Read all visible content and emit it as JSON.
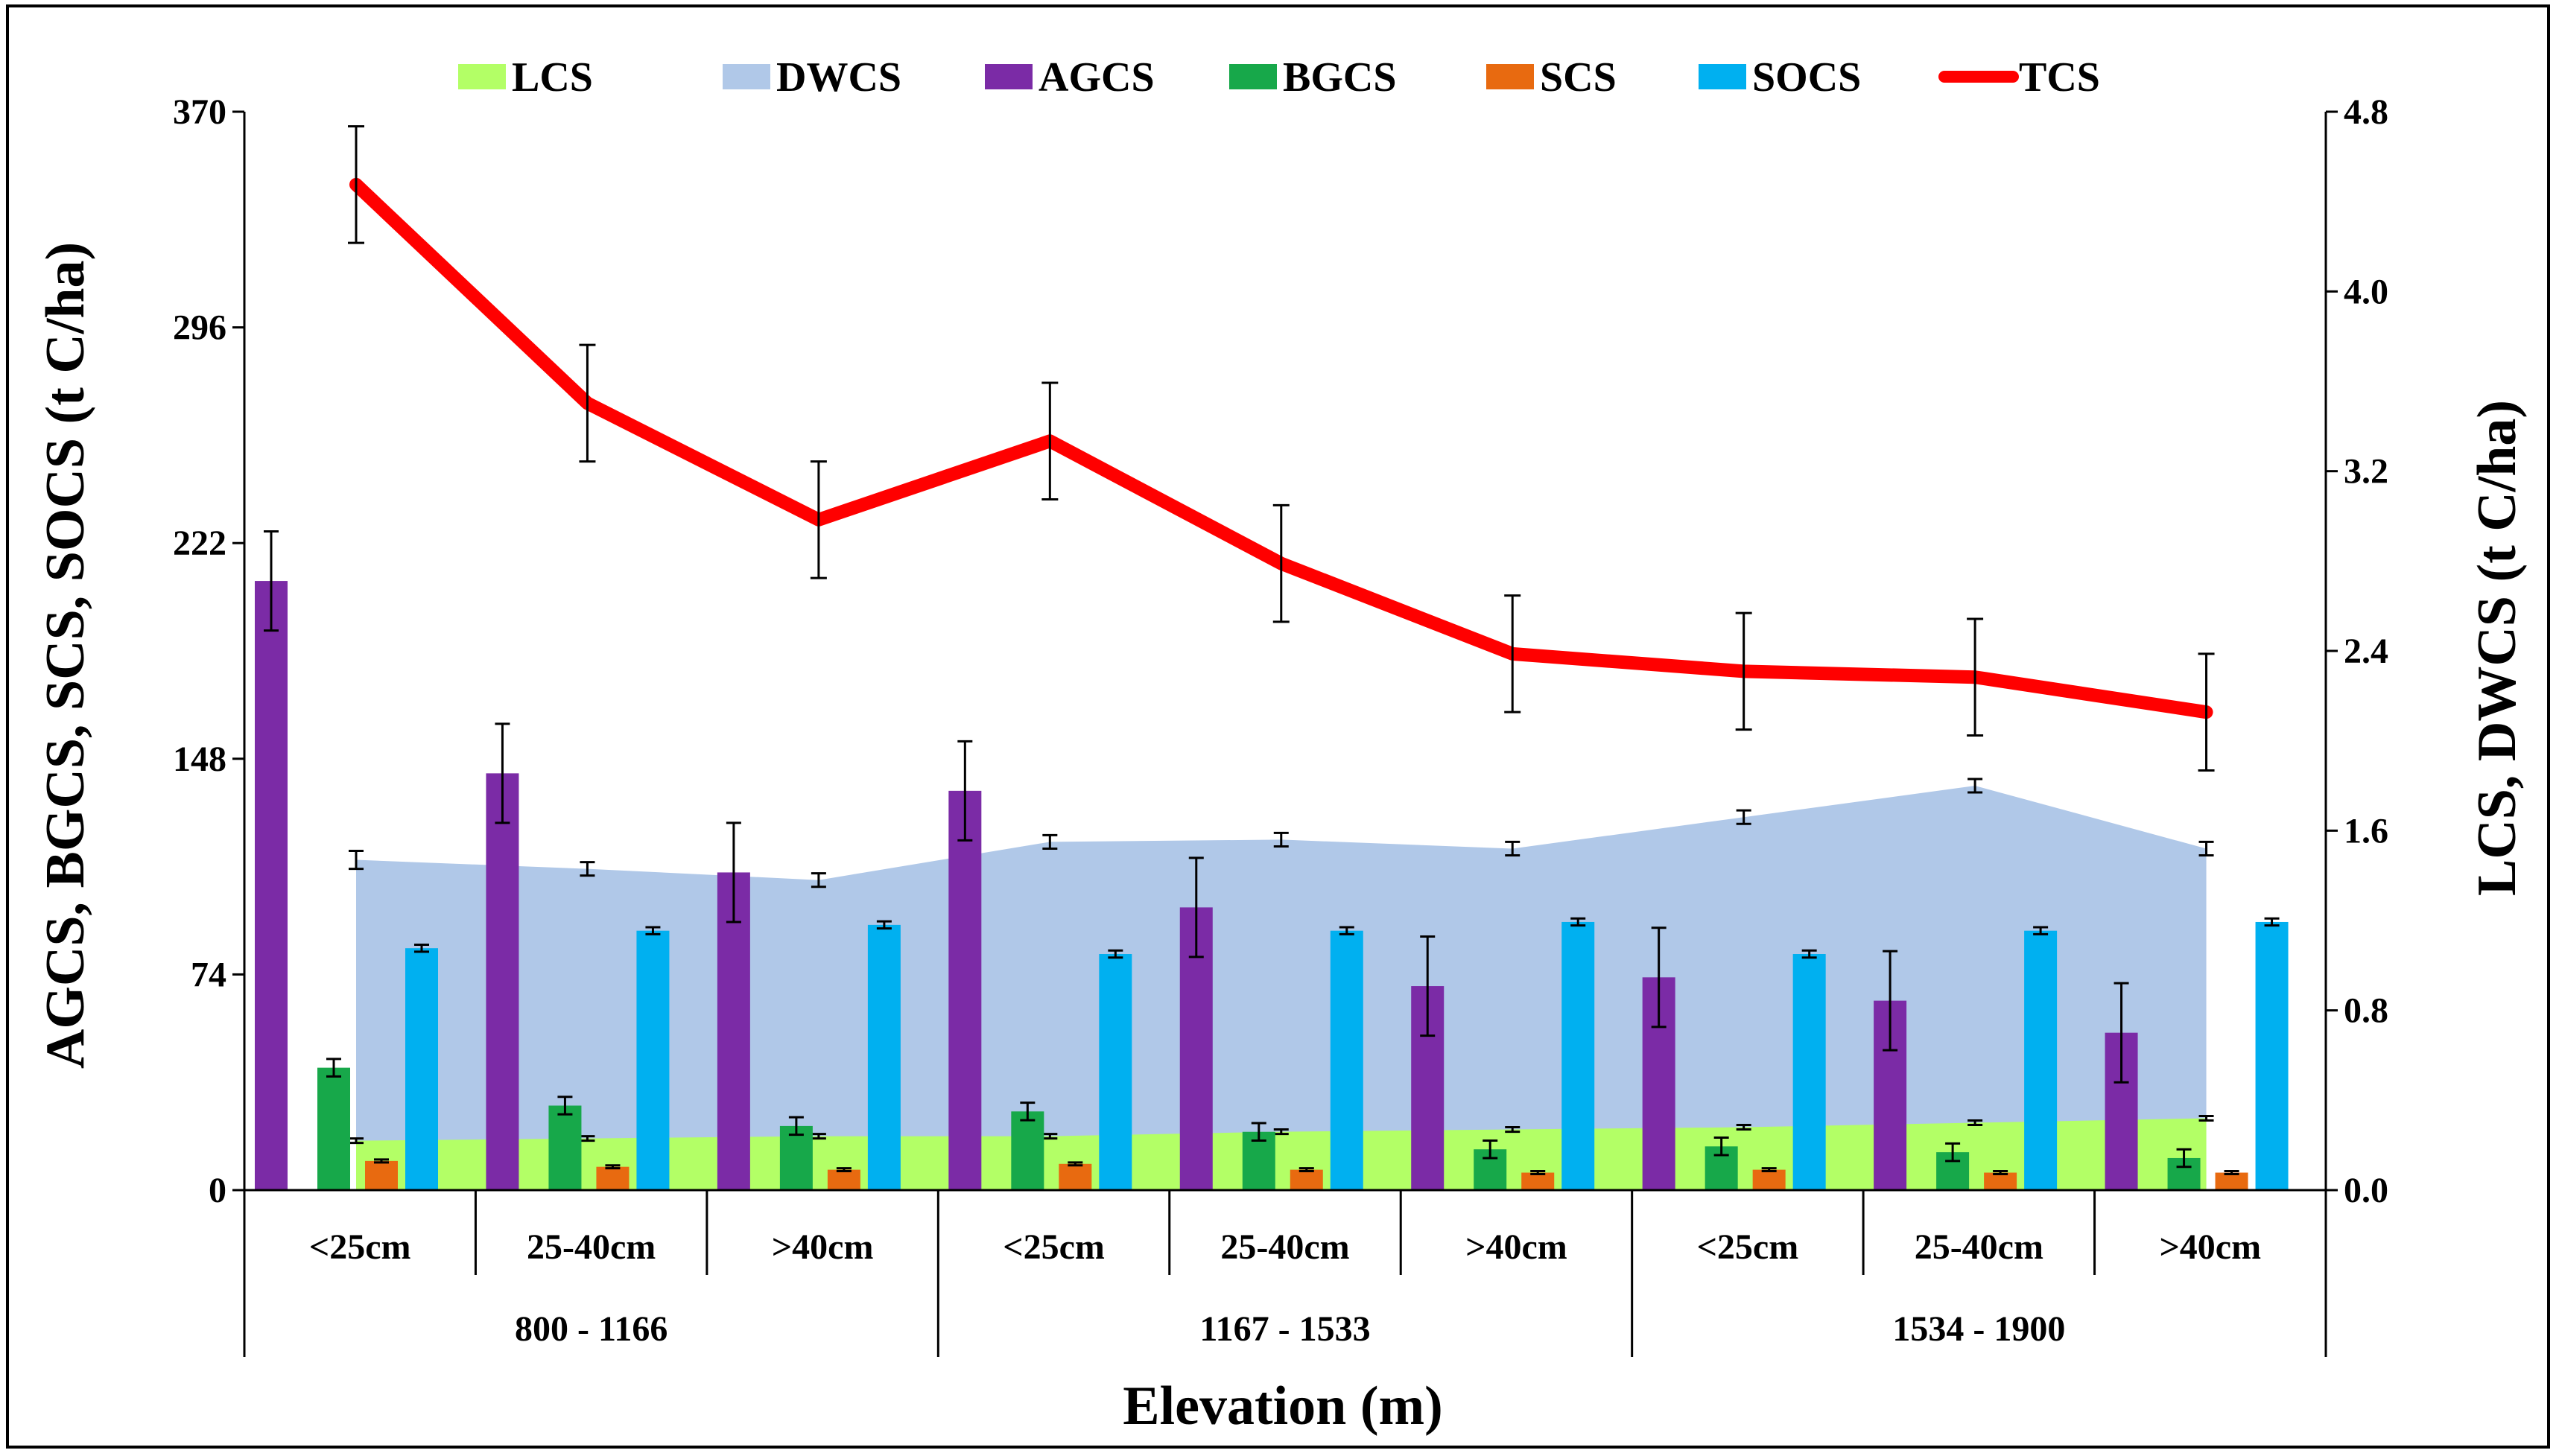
{
  "chart_data": {
    "type": "bar",
    "xlabel": "Elevation (m)",
    "ylabel_left": "AGCS, BGCS, SCS, SOCS (t C/ha)",
    "ylabel_right": "LCS, DWCS (t C/ha)",
    "ylim_left": [
      0,
      370
    ],
    "ylim_right": [
      0,
      4.8
    ],
    "yticks_left": [
      "0",
      "74",
      "148",
      "222",
      "296",
      "370"
    ],
    "yticks_right": [
      "0.0",
      "0.8",
      "1.6",
      "2.4",
      "3.2",
      "4.0",
      "4.8"
    ],
    "legend_position": "top",
    "categories": [
      "<25cm",
      "25-40cm",
      ">40cm",
      "<25cm",
      "25-40cm",
      ">40cm",
      "<25cm",
      "25-40cm",
      ">40cm"
    ],
    "groups": [
      "800 - 1166",
      "1167 - 1533",
      "1534 - 1900"
    ],
    "series": [
      {
        "name": "LCS",
        "kind": "area",
        "axis": "right",
        "color": "#b3ff66",
        "values": [
          0.22,
          0.23,
          0.24,
          0.24,
          0.26,
          0.27,
          0.28,
          0.3,
          0.32
        ],
        "errors": [
          0.01,
          0.01,
          0.01,
          0.01,
          0.01,
          0.01,
          0.01,
          0.01,
          0.01
        ]
      },
      {
        "name": "DWCS",
        "kind": "area",
        "axis": "right",
        "color": "#b0c8e8",
        "values": [
          1.47,
          1.43,
          1.38,
          1.55,
          1.56,
          1.52,
          1.66,
          1.8,
          1.52
        ],
        "errors": [
          0.04,
          0.03,
          0.03,
          0.03,
          0.03,
          0.03,
          0.03,
          0.03,
          0.03
        ]
      },
      {
        "name": "AGCS",
        "kind": "bar",
        "axis": "left",
        "color": "#7b2ba6",
        "values": [
          209,
          143,
          109,
          137,
          97,
          70,
          73,
          65,
          54
        ],
        "errors": [
          17,
          17,
          17,
          17,
          17,
          17,
          17,
          17,
          17
        ]
      },
      {
        "name": "BGCS",
        "kind": "bar",
        "axis": "left",
        "color": "#17a84a",
        "values": [
          42,
          29,
          22,
          27,
          20,
          14,
          15,
          13,
          11
        ],
        "errors": [
          3,
          3,
          3,
          3,
          3,
          3,
          3,
          3,
          3
        ]
      },
      {
        "name": "SCS",
        "kind": "bar",
        "axis": "left",
        "color": "#e86a10",
        "values": [
          10,
          8,
          7,
          9,
          7,
          6,
          7,
          6,
          6
        ],
        "errors": [
          0.5,
          0.5,
          0.5,
          0.5,
          0.5,
          0.5,
          0.5,
          0.5,
          0.5
        ]
      },
      {
        "name": "SOCS",
        "kind": "bar",
        "axis": "left",
        "color": "#00b0f0",
        "values": [
          83,
          89,
          91,
          81,
          89,
          92,
          81,
          89,
          92
        ],
        "errors": [
          1.2,
          1.2,
          1.2,
          1.2,
          1.2,
          1.2,
          1.2,
          1.2,
          1.2
        ]
      },
      {
        "name": "TCS",
        "kind": "line",
        "axis": "left",
        "color": "#ff0000",
        "values": [
          345,
          270,
          230,
          257,
          215,
          184,
          178,
          176,
          164
        ],
        "errors": [
          20,
          20,
          20,
          20,
          20,
          20,
          20,
          20,
          20
        ]
      }
    ]
  }
}
